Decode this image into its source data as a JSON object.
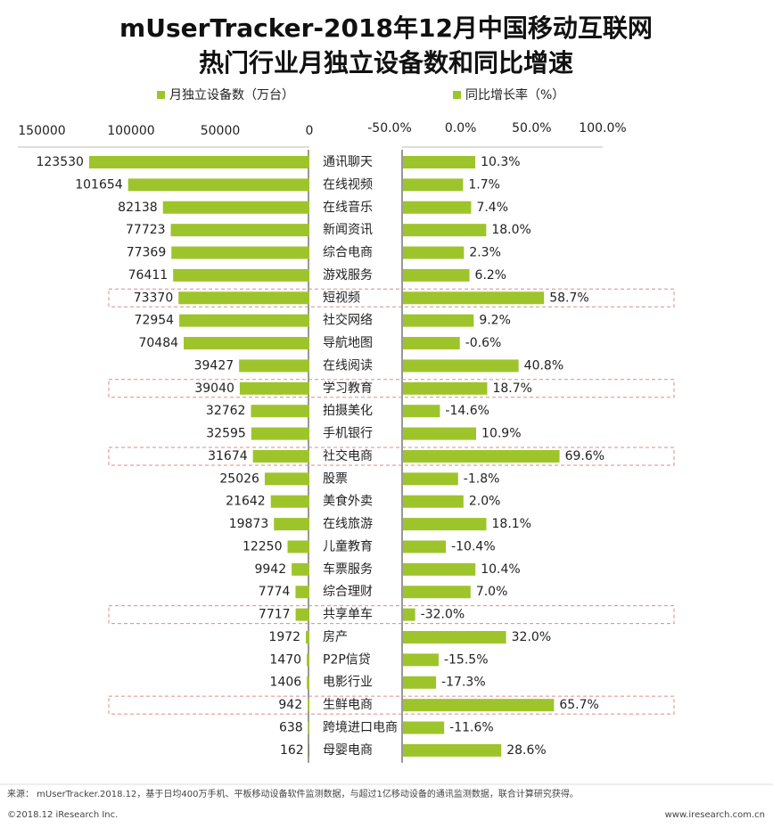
{
  "chart_data": {
    "type": "butterfly",
    "title": [
      "mUserTracker-2018年12月中国移动互联网",
      "热门行业月独立设备数和同比增速"
    ],
    "categories": [
      "通讯聊天",
      "在线视频",
      "在线音乐",
      "新闻资讯",
      "综合电商",
      "游戏服务",
      "短视频",
      "社交网络",
      "导航地图",
      "在线阅读",
      "学习教育",
      "拍摄美化",
      "手机银行",
      "社交电商",
      "股票",
      "美食外卖",
      "在线旅游",
      "儿童教育",
      "车票服务",
      "综合理财",
      "共享单车",
      "房产",
      "P2P信贷",
      "电影行业",
      "生鲜电商",
      "跨境进口电商",
      "母婴电商"
    ],
    "series": [
      {
        "name": "月独立设备数（万台）",
        "color": "#9ec42c",
        "values": [
          123530,
          101654,
          82138,
          77723,
          77369,
          76411,
          73370,
          72954,
          70484,
          39427,
          39040,
          32762,
          32595,
          31674,
          25026,
          21642,
          19873,
          12250,
          9942,
          7774,
          7717,
          1972,
          1470,
          1406,
          942,
          638,
          162
        ],
        "xlim": [
          0,
          150000
        ],
        "xticks": [
          150000,
          100000,
          50000,
          0
        ]
      },
      {
        "name": "同比增长率（%）",
        "color": "#9ec42c",
        "values": [
          10.3,
          1.7,
          7.4,
          18.0,
          2.3,
          6.2,
          58.7,
          9.2,
          -0.6,
          40.8,
          18.7,
          -14.6,
          10.9,
          69.6,
          -1.8,
          2.0,
          18.1,
          -10.4,
          10.4,
          7.0,
          -32.0,
          32.0,
          -15.5,
          -17.3,
          65.7,
          -11.6,
          28.6
        ],
        "value_labels": [
          "10.3%",
          "1.7%",
          "7.4%",
          "18.0%",
          "2.3%",
          "6.2%",
          "58.7%",
          "9.2%",
          "-0.6%",
          "40.8%",
          "18.7%",
          "-14.6%",
          "10.9%",
          "69.6%",
          "-1.8%",
          "2.0%",
          "18.1%",
          "-10.4%",
          "10.4%",
          "7.0%",
          "-32.0%",
          "32.0%",
          "-15.5%",
          "-17.3%",
          "65.7%",
          "-11.6%",
          "28.6%"
        ],
        "xlim": [
          -50,
          100
        ],
        "xticks": [
          {
            "value": -50,
            "label": "-50.0%"
          },
          {
            "value": 0,
            "label": "0.0%"
          },
          {
            "value": 50,
            "label": "50.0%"
          },
          {
            "value": 100,
            "label": "100.0%"
          }
        ]
      }
    ],
    "highlighted": [
      "短视频",
      "学习教育",
      "社交电商",
      "共享单车",
      "生鲜电商"
    ],
    "highlight_color": "#e08a8a",
    "source": "来源：  mUserTracker.2018.12，基于日均400万手机、平板移动设备软件监测数据，与超过1亿移动设备的通讯监测数据，联合计算研究获得。",
    "copyright": "©2018.12 iResearch Inc.",
    "website": "www.iresearch.com.cn"
  }
}
